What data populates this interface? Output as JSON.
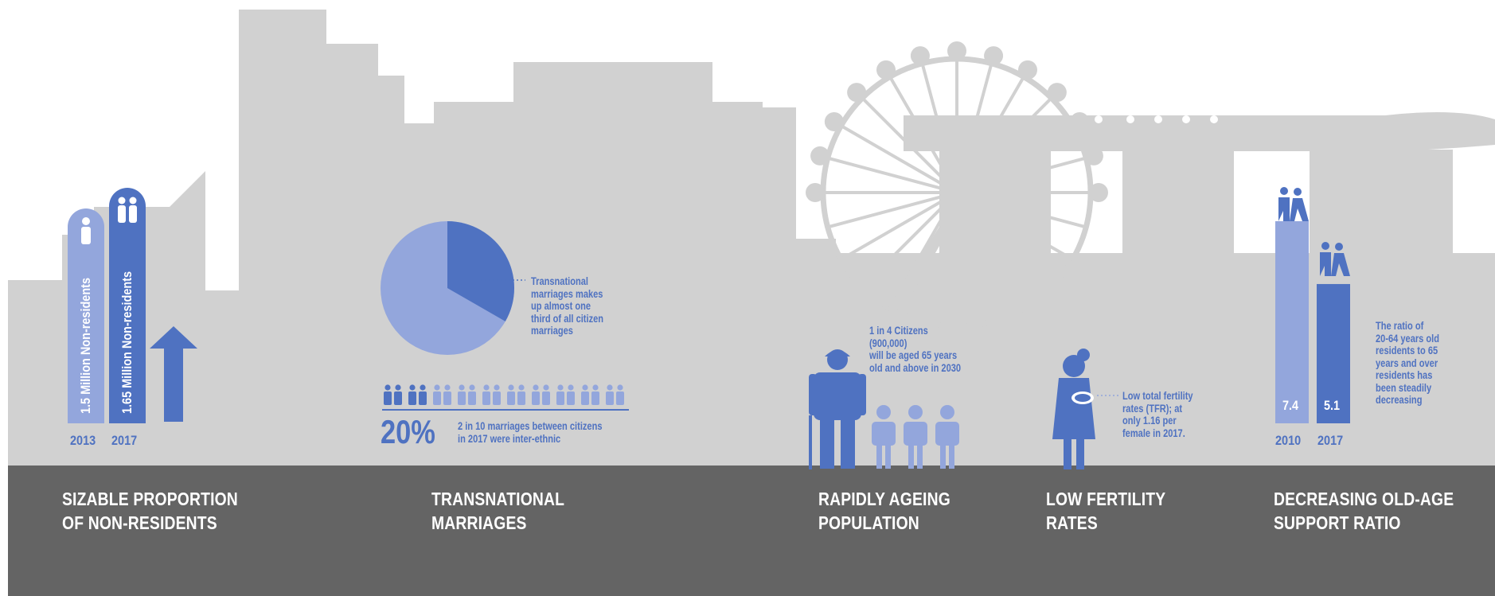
{
  "colors": {
    "skyline": "#d1d1d1",
    "footer": "#646464",
    "primary_blue": "#4f72c1",
    "light_blue": "#93a6dc",
    "text_white": "#ffffff"
  },
  "sections": {
    "non_residents": {
      "title": "SIZABLE PROPORTION\nOF NON-RESIDENTS",
      "bars": [
        {
          "year": "2013",
          "label": "1.5 Million Non-residents",
          "value_millions": 1.5
        },
        {
          "year": "2017",
          "label": "1.65 Million Non-residents",
          "value_millions": 1.65
        }
      ],
      "icons": [
        "person-icon",
        "two-people-icon",
        "up-arrow-icon"
      ]
    },
    "transnational": {
      "title": "TRANSNATIONAL\nMARRIAGES",
      "pie_note": "Transnational\nmarriages makes\nup almost one\nthird of all citizen\nmarriages",
      "pie_fraction": 0.333,
      "percent": "20%",
      "percent_note": "2 in 10 marriages between citizens\nin 2017 were inter-ethnic",
      "couples_highlighted": 2,
      "couples_total": 10
    },
    "ageing": {
      "title": "RAPIDLY AGEING\nPOPULATION",
      "note": "1 in 4 Citizens\n(900,000)\nwill be aged 65 years\nold and above in 2030",
      "icons": [
        "elderly-person-icon",
        "person-icon"
      ]
    },
    "fertility": {
      "title": "LOW FERTILITY\nRATES",
      "note": "Low total fertility\nrates (TFR); at\nonly 1.16 per\nfemale in 2017.",
      "icons": [
        "mother-baby-icon"
      ]
    },
    "support_ratio": {
      "title": "DECREASING OLD-AGE\nSUPPORT RATIO",
      "bars": [
        {
          "year": "2010",
          "value": "7.4",
          "ratio": 7.4
        },
        {
          "year": "2017",
          "value": "5.1",
          "ratio": 5.1
        }
      ],
      "note": "The ratio of\n20-64 years old\nresidents to 65\nyears and over\nresidents has\nbeen steadily\ndecreasing",
      "icons": [
        "caregiver-icon"
      ]
    }
  }
}
